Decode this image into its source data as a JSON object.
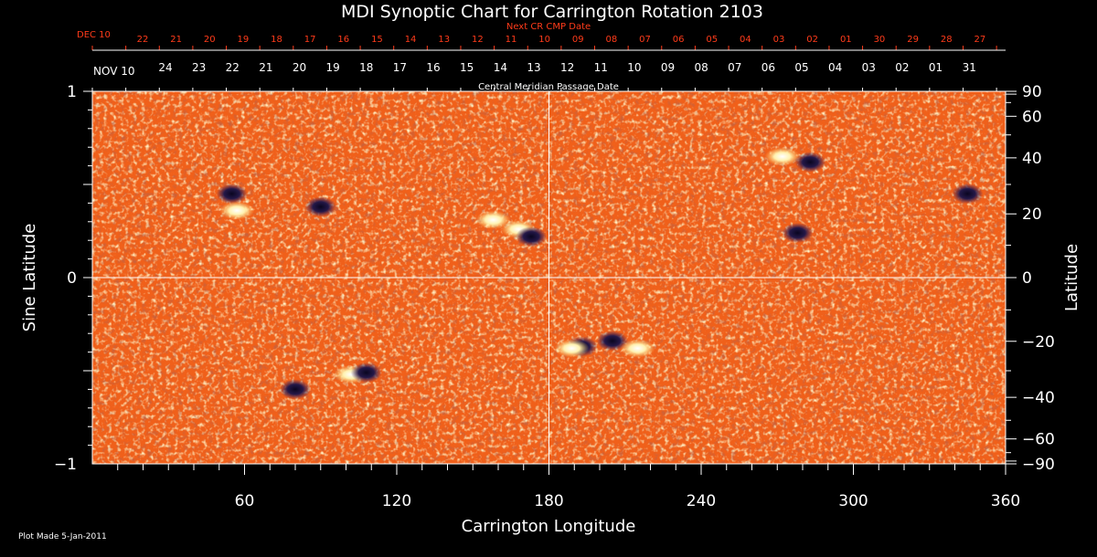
{
  "chart_data": {
    "type": "heatmap",
    "title": "MDI Synoptic Chart for Carrington Rotation 2103",
    "xlabel": "Carrington Longitude",
    "ylabel_left": "Sine Latitude",
    "ylabel_right": "Latitude",
    "xlim": [
      0,
      360
    ],
    "ylim": [
      -1,
      1
    ],
    "x_tick_labels": [
      60,
      120,
      180,
      240,
      300,
      360
    ],
    "x_minor_step": 10,
    "left_tick_labels": [
      "1",
      "0",
      "−1"
    ],
    "right_tick_labels": [
      90,
      60,
      40,
      20,
      0,
      -20,
      -40,
      -60,
      -90
    ],
    "right_minor_step": 10,
    "crosshair": {
      "longitude": 180,
      "sine_latitude": 0
    },
    "top_axis_label": "Central Meridian Passage Date",
    "top_axis_first_label": "NOV 10",
    "top_axis_dates": [
      "24",
      "23",
      "22",
      "21",
      "20",
      "19",
      "18",
      "17",
      "16",
      "15",
      "14",
      "13",
      "12",
      "11",
      "10",
      "09",
      "08",
      "07",
      "06",
      "05",
      "04",
      "03",
      "02",
      "01",
      "31"
    ],
    "next_cr_label": "Next CR CMP Date",
    "next_cr_first_label": "DEC 10",
    "next_cr_dates": [
      "22",
      "21",
      "20",
      "19",
      "18",
      "17",
      "16",
      "15",
      "14",
      "13",
      "12",
      "11",
      "10",
      "09",
      "08",
      "07",
      "06",
      "05",
      "04",
      "03",
      "02",
      "01",
      "30",
      "29",
      "28",
      "27"
    ],
    "background_color": "#f0601a",
    "positive_color": "#fff6c8",
    "negative_color": "#241848",
    "active_regions": [
      {
        "lon": 55,
        "sinlat": 0.45,
        "polarity": "negative"
      },
      {
        "lon": 57,
        "sinlat": 0.36,
        "polarity": "positive"
      },
      {
        "lon": 90,
        "sinlat": 0.38,
        "polarity": "negative"
      },
      {
        "lon": 168,
        "sinlat": 0.26,
        "polarity": "positive"
      },
      {
        "lon": 173,
        "sinlat": 0.22,
        "polarity": "negative"
      },
      {
        "lon": 158,
        "sinlat": 0.31,
        "polarity": "positive"
      },
      {
        "lon": 272,
        "sinlat": 0.65,
        "polarity": "positive"
      },
      {
        "lon": 283,
        "sinlat": 0.62,
        "polarity": "negative"
      },
      {
        "lon": 345,
        "sinlat": 0.45,
        "polarity": "negative"
      },
      {
        "lon": 278,
        "sinlat": 0.24,
        "polarity": "negative"
      },
      {
        "lon": 193,
        "sinlat": -0.37,
        "polarity": "negative"
      },
      {
        "lon": 189,
        "sinlat": -0.38,
        "polarity": "positive"
      },
      {
        "lon": 205,
        "sinlat": -0.34,
        "polarity": "negative"
      },
      {
        "lon": 215,
        "sinlat": -0.38,
        "polarity": "positive"
      },
      {
        "lon": 102,
        "sinlat": -0.52,
        "polarity": "positive"
      },
      {
        "lon": 108,
        "sinlat": -0.51,
        "polarity": "negative"
      },
      {
        "lon": 80,
        "sinlat": -0.6,
        "polarity": "negative"
      }
    ]
  },
  "footer": {
    "plot_made": "Plot Made  5-Jan-2011"
  }
}
